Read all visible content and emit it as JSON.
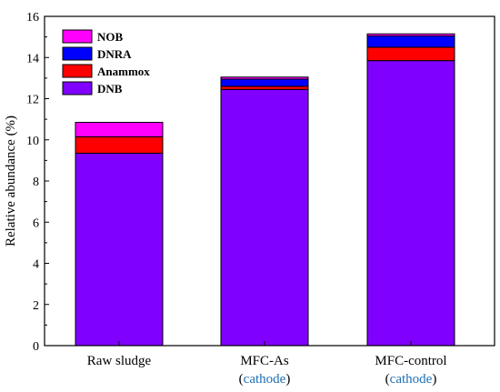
{
  "chart_data": {
    "type": "bar",
    "stacked": true,
    "categories": [
      "Raw sludge",
      "MFC-As",
      "MFC-control"
    ],
    "category_sublabels": [
      "",
      "(cathode)",
      "(cathode)"
    ],
    "ylabel": "Relative abundance (%)",
    "xlabel": "",
    "ylim": [
      0,
      16
    ],
    "yticks": [
      0,
      2,
      4,
      6,
      8,
      10,
      12,
      14,
      16
    ],
    "grid": false,
    "legend_position": "top-left",
    "series": [
      {
        "name": "DNB",
        "color": "#8000ff",
        "values": [
          9.35,
          12.45,
          13.85
        ]
      },
      {
        "name": "Anammox",
        "color": "#ff0000",
        "values": [
          0.8,
          0.15,
          0.65
        ]
      },
      {
        "name": "DNRA",
        "color": "#0000ff",
        "values": [
          0.0,
          0.35,
          0.55
        ]
      },
      {
        "name": "NOB",
        "color": "#ff00ff",
        "values": [
          0.7,
          0.1,
          0.1
        ]
      }
    ],
    "legend_order": [
      "NOB",
      "DNRA",
      "Anammox",
      "DNB"
    ],
    "sublabel_color": "#1f6fb5"
  }
}
